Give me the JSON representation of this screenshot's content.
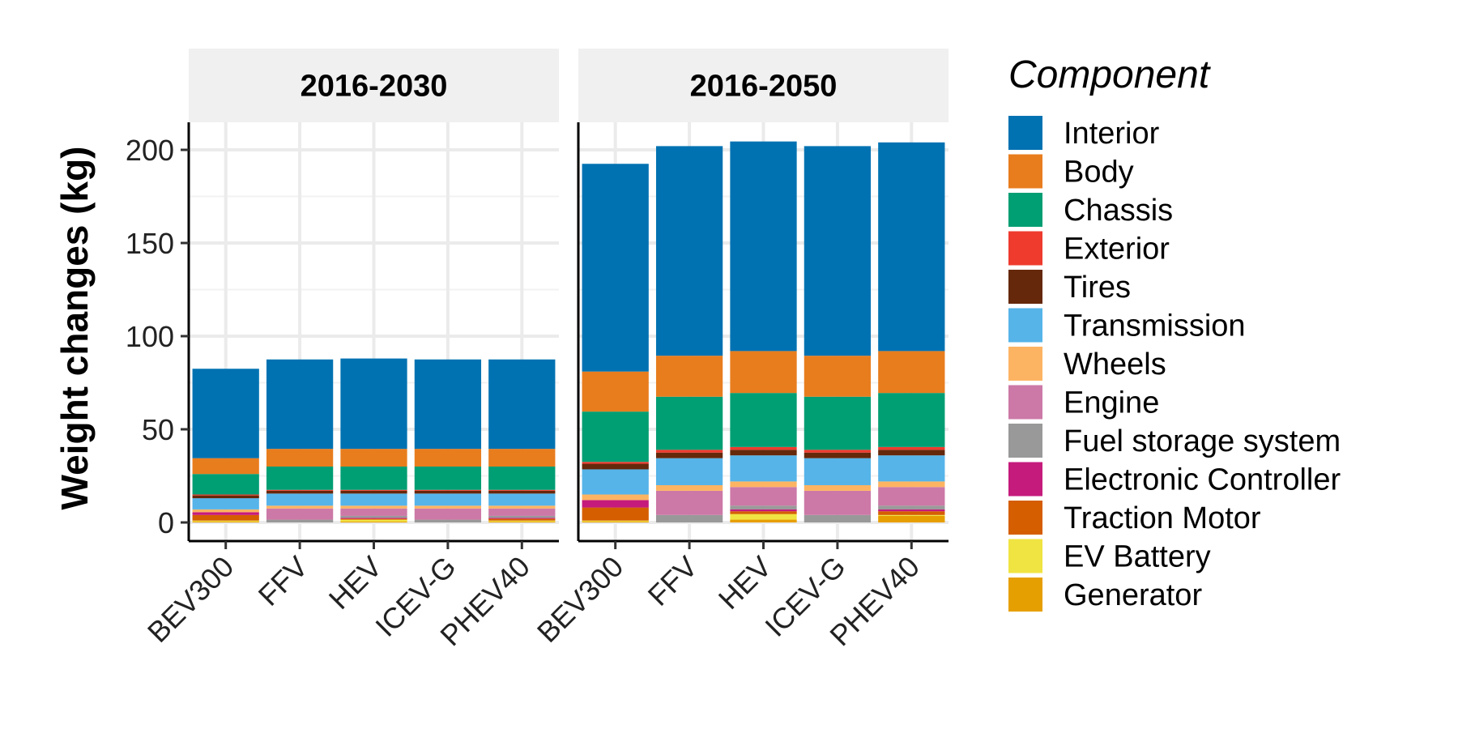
{
  "chart_data": {
    "type": "bar",
    "stacked": true,
    "ylabel": "Weight changes (kg)",
    "ylim": [
      0,
      214
    ],
    "yticks": [
      0,
      50,
      100,
      150,
      200
    ],
    "grid": true,
    "legend": {
      "title": "Component",
      "placement": "right",
      "entries": [
        {
          "name": "Interior",
          "color": "#0072B2"
        },
        {
          "name": "Body",
          "color": "#E87D1E"
        },
        {
          "name": "Chassis",
          "color": "#009E73"
        },
        {
          "name": "Exterior",
          "color": "#EE3B2E"
        },
        {
          "name": "Tires",
          "color": "#65280A"
        },
        {
          "name": "Transmission",
          "color": "#56B4E9"
        },
        {
          "name": "Wheels",
          "color": "#FDB462"
        },
        {
          "name": "Engine",
          "color": "#CC79A7"
        },
        {
          "name": "Fuel storage system",
          "color": "#999999"
        },
        {
          "name": "Electronic Controller",
          "color": "#C51B7D"
        },
        {
          "name": "Traction Motor",
          "color": "#D55E00"
        },
        {
          "name": "EV Battery",
          "color": "#F0E442"
        },
        {
          "name": "Generator",
          "color": "#E69F00"
        }
      ]
    },
    "categories": [
      "BEV300",
      "FFV",
      "HEV",
      "ICEV-G",
      "PHEV40"
    ],
    "stack_order_bottom_to_top": [
      "Generator",
      "EV Battery",
      "Traction Motor",
      "Electronic Controller",
      "Fuel storage system",
      "Engine",
      "Wheels",
      "Transmission",
      "Tires",
      "Exterior",
      "Chassis",
      "Body",
      "Interior"
    ],
    "panels": [
      {
        "title": "2016-2030",
        "series": [
          {
            "name": "Interior",
            "values": [
              48,
              48,
              48.5,
              48,
              48
            ]
          },
          {
            "name": "Body",
            "values": [
              8.5,
              9.5,
              9.5,
              9.5,
              9.5
            ]
          },
          {
            "name": "Chassis",
            "values": [
              11,
              12.5,
              12.5,
              12.5,
              12.5
            ]
          },
          {
            "name": "Exterior",
            "values": [
              0.5,
              0.5,
              0.5,
              0.5,
              0.5
            ]
          },
          {
            "name": "Tires",
            "values": [
              1.5,
              1.5,
              1.5,
              1.5,
              1.5
            ]
          },
          {
            "name": "Transmission",
            "values": [
              6,
              6.5,
              6.5,
              6.5,
              6.5
            ]
          },
          {
            "name": "Wheels",
            "values": [
              1.5,
              1.5,
              1.5,
              1.5,
              1.5
            ]
          },
          {
            "name": "Engine",
            "values": [
              0,
              6,
              4,
              6,
              4
            ]
          },
          {
            "name": "Fuel storage system",
            "values": [
              0,
              1.5,
              1,
              1.5,
              1
            ]
          },
          {
            "name": "Electronic Controller",
            "values": [
              1.5,
              0,
              0.5,
              0,
              0.5
            ]
          },
          {
            "name": "Traction Motor",
            "values": [
              3,
              0,
              0.5,
              0,
              1
            ]
          },
          {
            "name": "EV Battery",
            "values": [
              0.5,
              0,
              1,
              0,
              0.5
            ]
          },
          {
            "name": "Generator",
            "values": [
              0.5,
              0,
              0.5,
              0,
              0.5
            ]
          }
        ]
      },
      {
        "title": "2016-2050",
        "series": [
          {
            "name": "Interior",
            "values": [
              111.5,
              112.5,
              112.5,
              112.5,
              112
            ]
          },
          {
            "name": "Body",
            "values": [
              21.5,
              22,
              22.5,
              22,
              22.5
            ]
          },
          {
            "name": "Chassis",
            "values": [
              27,
              28.5,
              29,
              28.5,
              29
            ]
          },
          {
            "name": "Exterior",
            "values": [
              1,
              1.5,
              1.5,
              1.5,
              1.5
            ]
          },
          {
            "name": "Tires",
            "values": [
              3,
              3,
              3,
              3,
              3
            ]
          },
          {
            "name": "Transmission",
            "values": [
              13.5,
              14.5,
              14,
              14.5,
              14
            ]
          },
          {
            "name": "Wheels",
            "values": [
              3,
              3,
              3,
              3,
              3
            ]
          },
          {
            "name": "Engine",
            "values": [
              0,
              13,
              10,
              13,
              10
            ]
          },
          {
            "name": "Fuel storage system",
            "values": [
              0,
              4,
              2,
              4,
              2
            ]
          },
          {
            "name": "Electronic Controller",
            "values": [
              4,
              0,
              1,
              0,
              1
            ]
          },
          {
            "name": "Traction Motor",
            "values": [
              7,
              0,
              1.5,
              0,
              2
            ]
          },
          {
            "name": "EV Battery",
            "values": [
              0.5,
              0,
              3,
              0,
              0.5
            ]
          },
          {
            "name": "Generator",
            "values": [
              0.5,
              0,
              1.5,
              0,
              3.5
            ]
          }
        ]
      }
    ]
  }
}
